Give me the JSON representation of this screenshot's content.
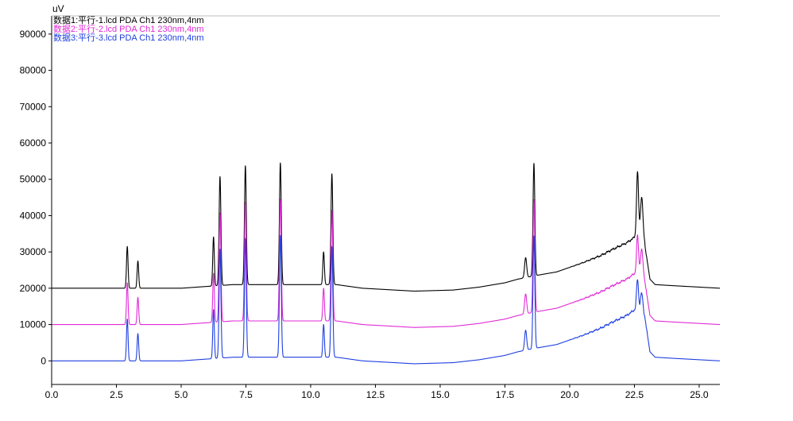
{
  "chart_data": {
    "type": "line",
    "ylabel": "uV",
    "xlabel": "",
    "xlim": [
      0,
      25.8
    ],
    "ylim": [
      -6500,
      95000
    ],
    "x_ticks": [
      0.0,
      2.5,
      5.0,
      7.5,
      10.0,
      12.5,
      15.0,
      17.5,
      20.0,
      22.5,
      25.0
    ],
    "x_tick_labels": [
      "0.0",
      "2.5",
      "5.0",
      "7.5",
      "10.0",
      "12.5",
      "15.0",
      "17.5",
      "20.0",
      "22.5",
      "25.0"
    ],
    "y_ticks": [
      0,
      10000,
      20000,
      30000,
      40000,
      50000,
      60000,
      70000,
      80000,
      90000
    ],
    "y_tick_labels": [
      "0",
      "10000",
      "20000",
      "30000",
      "40000",
      "50000",
      "60000",
      "70000",
      "80000",
      "90000"
    ],
    "grid": false,
    "legend_position": "top-left",
    "series": [
      {
        "name": "数据1:平行-1.lcd PDA Ch1 230nm,4nm",
        "color": "#000000",
        "offset": 20000,
        "peaks": [
          {
            "x": 2.92,
            "height": 11500,
            "width": 0.03
          },
          {
            "x": 3.33,
            "height": 7500,
            "width": 0.03
          },
          {
            "x": 6.25,
            "height": 13500,
            "width": 0.03
          },
          {
            "x": 6.5,
            "height": 30000,
            "width": 0.035
          },
          {
            "x": 7.48,
            "height": 32700,
            "width": 0.035
          },
          {
            "x": 8.83,
            "height": 33500,
            "width": 0.035
          },
          {
            "x": 10.5,
            "height": 9000,
            "width": 0.03
          },
          {
            "x": 10.82,
            "height": 30500,
            "width": 0.035
          },
          {
            "x": 18.3,
            "height": 5500,
            "width": 0.04
          },
          {
            "x": 18.62,
            "height": 31000,
            "width": 0.035
          },
          {
            "x": 22.62,
            "height": 18500,
            "width": 0.04
          },
          {
            "x": 22.78,
            "height": 12500,
            "width": 0.05
          }
        ],
        "baseline": [
          [
            0,
            0
          ],
          [
            5.0,
            0
          ],
          [
            6.0,
            500
          ],
          [
            7.0,
            1000
          ],
          [
            11.0,
            1000
          ],
          [
            12.0,
            0
          ],
          [
            14.0,
            -800
          ],
          [
            15.5,
            -500
          ],
          [
            16.5,
            300
          ],
          [
            17.5,
            1500
          ],
          [
            18.0,
            2500
          ],
          [
            18.7,
            3500
          ],
          [
            19.5,
            4500
          ],
          [
            20.5,
            7000
          ],
          [
            21.2,
            9000
          ],
          [
            21.6,
            10500
          ],
          [
            22.2,
            12500
          ],
          [
            22.5,
            14000
          ],
          [
            22.9,
            12000
          ],
          [
            23.1,
            2500
          ],
          [
            23.3,
            1000
          ],
          [
            24.0,
            700
          ],
          [
            25.8,
            0
          ]
        ]
      },
      {
        "name": "数据2:平行-2.lcd PDA Ch1 230nm,4nm",
        "color": "#e02ad6",
        "offset": 10000,
        "peaks": [
          {
            "x": 2.92,
            "height": 11500,
            "width": 0.03
          },
          {
            "x": 3.33,
            "height": 7500,
            "width": 0.03
          },
          {
            "x": 6.25,
            "height": 13500,
            "width": 0.03
          },
          {
            "x": 6.5,
            "height": 30000,
            "width": 0.035
          },
          {
            "x": 7.48,
            "height": 32700,
            "width": 0.035
          },
          {
            "x": 8.83,
            "height": 33500,
            "width": 0.035
          },
          {
            "x": 10.5,
            "height": 9000,
            "width": 0.03
          },
          {
            "x": 10.82,
            "height": 30500,
            "width": 0.035
          },
          {
            "x": 18.3,
            "height": 5500,
            "width": 0.04
          },
          {
            "x": 18.62,
            "height": 31000,
            "width": 0.035
          },
          {
            "x": 22.62,
            "height": 11000,
            "width": 0.04
          },
          {
            "x": 22.78,
            "height": 8000,
            "width": 0.05
          }
        ],
        "baseline": [
          [
            0,
            0
          ],
          [
            5.0,
            0
          ],
          [
            6.0,
            500
          ],
          [
            7.0,
            1000
          ],
          [
            11.0,
            1000
          ],
          [
            12.0,
            0
          ],
          [
            14.0,
            -800
          ],
          [
            15.5,
            -500
          ],
          [
            16.5,
            300
          ],
          [
            17.5,
            1500
          ],
          [
            18.0,
            2500
          ],
          [
            18.7,
            3500
          ],
          [
            19.5,
            4500
          ],
          [
            20.5,
            7000
          ],
          [
            21.2,
            9000
          ],
          [
            21.6,
            10500
          ],
          [
            22.2,
            12500
          ],
          [
            22.5,
            14000
          ],
          [
            22.9,
            12000
          ],
          [
            23.1,
            2500
          ],
          [
            23.3,
            1000
          ],
          [
            24.0,
            700
          ],
          [
            25.8,
            0
          ]
        ]
      },
      {
        "name": "数据3:平行-3.lcd PDA Ch1 230nm,4nm",
        "color": "#1f3fe0",
        "offset": 0,
        "peaks": [
          {
            "x": 2.92,
            "height": 11500,
            "width": 0.03
          },
          {
            "x": 3.33,
            "height": 7500,
            "width": 0.03
          },
          {
            "x": 6.25,
            "height": 13500,
            "width": 0.03
          },
          {
            "x": 6.5,
            "height": 30000,
            "width": 0.035
          },
          {
            "x": 7.48,
            "height": 32700,
            "width": 0.035
          },
          {
            "x": 8.83,
            "height": 33500,
            "width": 0.035
          },
          {
            "x": 10.5,
            "height": 9000,
            "width": 0.03
          },
          {
            "x": 10.82,
            "height": 30500,
            "width": 0.035
          },
          {
            "x": 18.3,
            "height": 5500,
            "width": 0.04
          },
          {
            "x": 18.62,
            "height": 31000,
            "width": 0.035
          },
          {
            "x": 22.62,
            "height": 9000,
            "width": 0.04
          },
          {
            "x": 22.78,
            "height": 6000,
            "width": 0.05
          }
        ],
        "baseline": [
          [
            0,
            0
          ],
          [
            5.0,
            0
          ],
          [
            6.0,
            500
          ],
          [
            7.0,
            1000
          ],
          [
            11.0,
            1000
          ],
          [
            12.0,
            0
          ],
          [
            14.0,
            -800
          ],
          [
            15.5,
            -500
          ],
          [
            16.5,
            300
          ],
          [
            17.5,
            1500
          ],
          [
            18.0,
            2500
          ],
          [
            18.7,
            3500
          ],
          [
            19.5,
            4500
          ],
          [
            20.5,
            7000
          ],
          [
            21.2,
            9000
          ],
          [
            21.6,
            10500
          ],
          [
            22.2,
            12500
          ],
          [
            22.5,
            14000
          ],
          [
            22.9,
            12000
          ],
          [
            23.1,
            2500
          ],
          [
            23.3,
            1000
          ],
          [
            24.0,
            700
          ],
          [
            25.8,
            0
          ]
        ]
      }
    ]
  }
}
